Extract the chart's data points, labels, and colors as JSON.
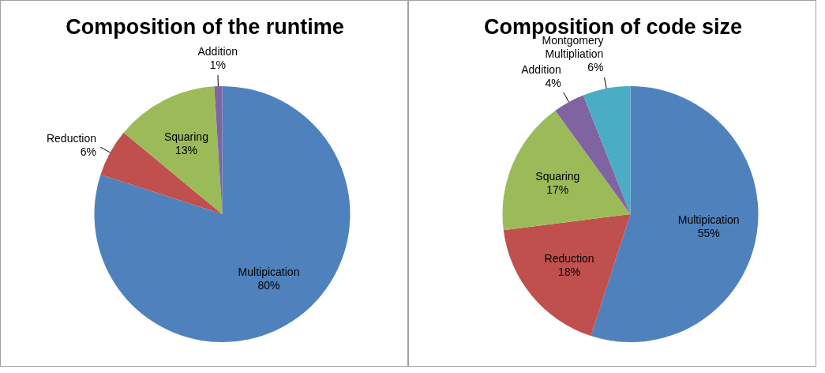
{
  "chart_data": [
    {
      "type": "pie",
      "title": "Composition of the runtime",
      "categories": [
        "Multipication",
        "Reduction",
        "Squaring",
        "Addition"
      ],
      "values": [
        80,
        6,
        13,
        1
      ],
      "colors": [
        "#4f81bd",
        "#c0504d",
        "#9bbb59",
        "#8064a2"
      ],
      "value_labels": [
        "80%",
        "6%",
        "13%",
        "1%"
      ]
    },
    {
      "type": "pie",
      "title": "Composition of code size",
      "categories": [
        "Multipication",
        "Reduction",
        "Squaring",
        "Addition",
        "Montgomery Multipliation"
      ],
      "values": [
        55,
        18,
        17,
        4,
        6
      ],
      "colors": [
        "#4f81bd",
        "#c0504d",
        "#9bbb59",
        "#8064a2",
        "#4bacc6"
      ],
      "value_labels": [
        "55%",
        "18%",
        "17%",
        "4%",
        "6%"
      ]
    }
  ]
}
